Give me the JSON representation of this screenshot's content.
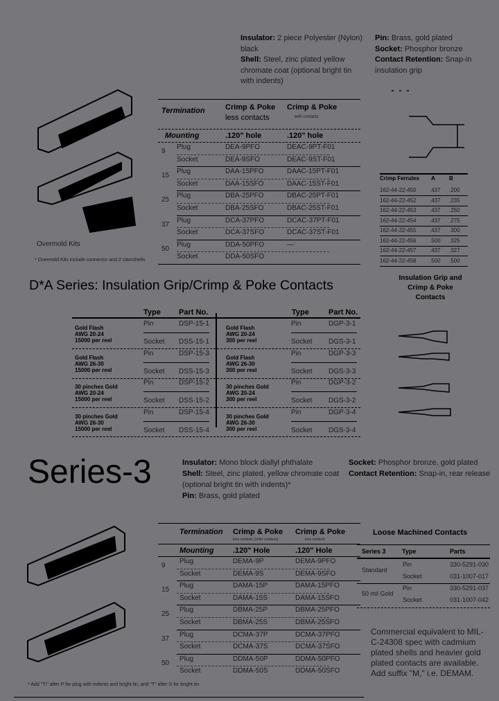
{
  "top": {
    "specs_left": [
      {
        "label": "Insulator:",
        "text": "2 piece Polyester (Nylon) black"
      },
      {
        "label": "Shell:",
        "text": "Steel, zinc plated yellow chromate coat (optional bright tin with indents)"
      }
    ],
    "specs_right": [
      {
        "label": "Pin:",
        "text": "Brass, gold plated"
      },
      {
        "label": "Socket:",
        "text": "Phosphor bronze"
      },
      {
        "label": "Contact Retention:",
        "text": "Snap-in insulation grip"
      }
    ],
    "overmold_label": "Overmold Kits",
    "overmold_note": "* Overmold Kits include connector and 2 clamshells"
  },
  "table1": {
    "termination": "Termination",
    "col1": "Crimp & Poke",
    "col1_sub": "less contacts",
    "col2": "Crimp & Poke",
    "col2_sub": "with contacts",
    "mounting": "Mounting",
    "hole1": ".120\" hole",
    "hole2": ".120\" hole",
    "rows": [
      {
        "size": "9",
        "type": "Plug",
        "p1": "DEA-9PFO",
        "p2": "DEAC-9PT-F01"
      },
      {
        "size": "",
        "type": "Socket",
        "p1": "DEA-9SFO",
        "p2": "DEAC-9ST-F01"
      },
      {
        "size": "15",
        "type": "Plug",
        "p1": "DAA-15PFO",
        "p2": "DAAC-15PT-F01"
      },
      {
        "size": "",
        "type": "Socket",
        "p1": "DAA-15SFO",
        "p2": "DAAC-15ST-F01"
      },
      {
        "size": "25",
        "type": "Plug",
        "p1": "DBA-25PFO",
        "p2": "DBAC-25PT-F01"
      },
      {
        "size": "",
        "type": "Socket",
        "p1": "DBA-25SFO",
        "p2": "DBAC-25ST-F01"
      },
      {
        "size": "37",
        "type": "Plug",
        "p1": "DCA-37PFO",
        "p2": "DCAC-37PT-F01"
      },
      {
        "size": "",
        "type": "Socket",
        "p1": "DCA-37SFO",
        "p2": "DCAC-37ST-F01"
      },
      {
        "size": "50",
        "type": "Plug",
        "p1": "DDA-50PFO",
        "p2": "—"
      },
      {
        "size": "",
        "type": "Socket",
        "p1": "DDA-50SFO",
        "p2": ""
      }
    ]
  },
  "ferrules": {
    "headers": [
      "Crimp Ferrules",
      "A",
      "B"
    ],
    "rows": [
      [
        "162-44-22-450",
        ".437",
        ".200"
      ],
      [
        "162-44-22-452",
        ".437",
        ".235"
      ],
      [
        "162-44-22-453",
        ".437",
        ".250"
      ],
      [
        "162-44-22-454",
        ".437",
        ".275"
      ],
      [
        "162-44-22-455",
        ".437",
        ".300"
      ],
      [
        "162-44-22-456",
        ".500",
        ".325"
      ],
      [
        "162-44-22-457",
        ".437",
        ".327"
      ],
      [
        "162-44-22-458",
        ".500",
        ".500"
      ]
    ],
    "caption": [
      "Insulation Grip and",
      "Crimp & Poke",
      "Contacts"
    ]
  },
  "section_heading": "D*A Series: Insulation Grip/Crimp & Poke Contacts",
  "table2": {
    "type_header": "Type",
    "part_header": "Part No.",
    "left": [
      {
        "label": [
          "Gold Flash",
          "AWG 20-24",
          "15000 per reel"
        ],
        "pin": "DSP-15-1",
        "socket": "DSS-15-1"
      },
      {
        "label": [
          "Gold Flash",
          "AWG 26-30",
          "15000 per reel"
        ],
        "pin": "DSP-15-3",
        "socket": "DSS-15-3"
      },
      {
        "label": [
          "30 pinches Gold",
          "AWG 20-24",
          "15000 per reel"
        ],
        "pin": "DSP-15-2",
        "socket": "DSS-15-2"
      },
      {
        "label": [
          "30 pinches Gold",
          "AWG 26-30",
          "15000 per reel"
        ],
        "pin": "DSP-15-4",
        "socket": "DSS-15-4"
      }
    ],
    "right": [
      {
        "label": [
          "Gold Flash",
          "AWG 20-24",
          "300 per reel"
        ],
        "pin": "DGP-3-1",
        "socket": "DGS-3-1"
      },
      {
        "label": [
          "Gold Flash",
          "AWG 26-30",
          "300 per reel"
        ],
        "pin": "DGP-3-3",
        "socket": "DGS-3-3"
      },
      {
        "label": [
          "30 pinches Gold",
          "AWG 20-24",
          "300 per reel"
        ],
        "pin": "DGP-3-2",
        "socket": "DGS-3-2"
      },
      {
        "label": [
          "30 pinches Gold",
          "AWG 26-30",
          "300 per reel"
        ],
        "pin": "DGP-3-4",
        "socket": "DGS-3-4"
      }
    ],
    "pin_label": "Pin",
    "socket_label": "Socket"
  },
  "series3": {
    "heading": "Series-3",
    "specs_left": [
      {
        "label": "Insulator:",
        "text": "Mono block diallyl phthalate"
      },
      {
        "label": "Shell:",
        "text": "Steel, zinc plated, yellow chromate coat (optional bright tin with indents)*"
      },
      {
        "label": "Pin:",
        "text": "Brass, gold plated"
      }
    ],
    "specs_right": [
      {
        "label": "Socket:",
        "text": "Phosphor bronze, gold plated"
      },
      {
        "label": "Contact Retention:",
        "text": "Snap-in, rear release"
      }
    ]
  },
  "table3": {
    "termination": "Termination",
    "col1": "Crimp & Poke",
    "col1_sub": "less contacts (order contacts)",
    "col2": "Crimp & Poke",
    "col2_sub": "less contacts",
    "mounting": "Mounting",
    "hole1": ".120\" Hole",
    "hole2": ".120\" Hole",
    "rows": [
      {
        "size": "9",
        "type": "Plug",
        "p1": "DEMA-9P",
        "p2": "DEMA-9PFO"
      },
      {
        "size": "",
        "type": "Socket",
        "p1": "DEMA-9S",
        "p2": "DEMA-9SFO"
      },
      {
        "size": "15",
        "type": "Plug",
        "p1": "DAMA-15P",
        "p2": "DAMA-15PFO"
      },
      {
        "size": "",
        "type": "Socket",
        "p1": "DAMA-15S",
        "p2": "DAMA-15SFO"
      },
      {
        "size": "25",
        "type": "Plug",
        "p1": "DBMA-25P",
        "p2": "DBMA-25PFO"
      },
      {
        "size": "",
        "type": "Socket",
        "p1": "DBMA-25S",
        "p2": "DBMA-25SFO"
      },
      {
        "size": "37",
        "type": "Plug",
        "p1": "DCMA-37P",
        "p2": "DCMA-37PFO"
      },
      {
        "size": "",
        "type": "Socket",
        "p1": "DCMA-37S",
        "p2": "DCMA-37SFO"
      },
      {
        "size": "50",
        "type": "Plug",
        "p1": "DDMA-50P",
        "p2": "DDMA-50PFO"
      },
      {
        "size": "",
        "type": "Socket",
        "p1": "DDMA-50S",
        "p2": "DDMA-50SFO"
      }
    ],
    "footnote": "* Add \"TI\" after P for plug with indents and bright tin, and \"T\" after S for bright tin"
  },
  "loose": {
    "title": "Loose Machined Contacts",
    "headers": [
      "Series 3",
      "Type",
      "Parts"
    ],
    "rows": [
      {
        "group": "Standard",
        "type": "Pin",
        "part": "330-5291-030"
      },
      {
        "group": "",
        "type": "Socket",
        "part": "031-1007-017"
      },
      {
        "group": "50 mil Gold",
        "type": "Pin",
        "part": "330-5291-037"
      },
      {
        "group": "",
        "type": "Socket",
        "part": "031-1007-042"
      }
    ],
    "note": "Commercial equivalent to MIL-C-24308 spec with cadmium plated shells and heavier gold plated contacts are available. Add suffix \"M,\" i.e. DEMAM."
  }
}
